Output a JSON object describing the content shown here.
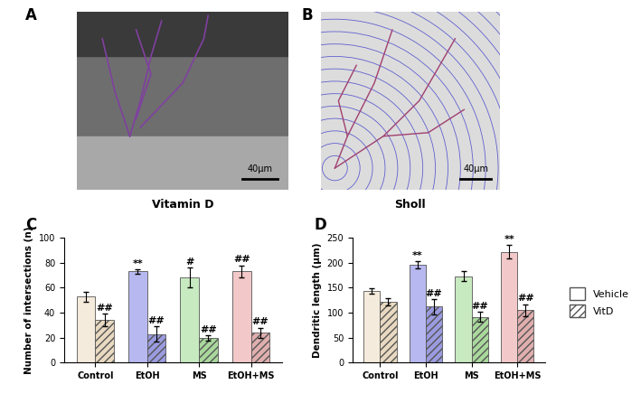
{
  "panels": {
    "A": {
      "label": "A",
      "caption": "Vitamin D",
      "scale_bar": "40µm"
    },
    "B": {
      "label": "B",
      "caption": "Sholl",
      "scale_bar": "40µm"
    }
  },
  "chart_data": [
    {
      "type": "bar",
      "label": "C",
      "y_label": "Number of intersections (n)",
      "categories": [
        "Control",
        "EtOH",
        "MS",
        "EtOH+MS"
      ],
      "ylim": [
        0,
        100
      ],
      "yticks": [
        0,
        20,
        40,
        60,
        80,
        100
      ],
      "legend": "right",
      "series": [
        {
          "name": "Vehicle",
          "color": "#ffffff",
          "colors": [
            "#f5ebdc",
            "#b8b8f0",
            "#c8eac0",
            "#f2c8c8"
          ],
          "values": [
            53,
            73,
            68,
            73
          ],
          "errors": [
            4,
            1.5,
            8,
            5
          ],
          "marks": [
            null,
            "**",
            "#",
            "##"
          ]
        },
        {
          "name": "VitD",
          "color": "#ffffff",
          "colors": [
            "#e8d9c0",
            "#9b9be0",
            "#a9d89c",
            "#e0aeae"
          ],
          "values": [
            34,
            23,
            20,
            24
          ],
          "errors": [
            5,
            6,
            2,
            4
          ],
          "marks": [
            "##",
            "##",
            "##",
            "##"
          ]
        }
      ]
    },
    {
      "type": "bar",
      "label": "D",
      "y_label": "Dendritic length (µm)",
      "categories": [
        "Control",
        "EtOH",
        "MS",
        "EtOH+MS"
      ],
      "ylim": [
        0,
        250
      ],
      "yticks": [
        0,
        50,
        100,
        150,
        200,
        250
      ],
      "legend": "right",
      "series": [
        {
          "name": "Vehicle",
          "color": "#ffffff",
          "colors": [
            "#f5ebdc",
            "#b8b8f0",
            "#c8eac0",
            "#f2c8c8"
          ],
          "values": [
            144,
            196,
            173,
            222
          ],
          "errors": [
            5,
            7,
            10,
            13
          ],
          "marks": [
            null,
            "**",
            null,
            "**"
          ]
        },
        {
          "name": "VitD",
          "color": "#ffffff",
          "colors": [
            "#e8d9c0",
            "#9b9be0",
            "#a9d89c",
            "#e0aeae"
          ],
          "values": [
            122,
            112,
            92,
            105
          ],
          "errors": [
            7,
            15,
            10,
            12
          ],
          "marks": [
            null,
            "##",
            "##",
            "##"
          ]
        }
      ]
    }
  ]
}
